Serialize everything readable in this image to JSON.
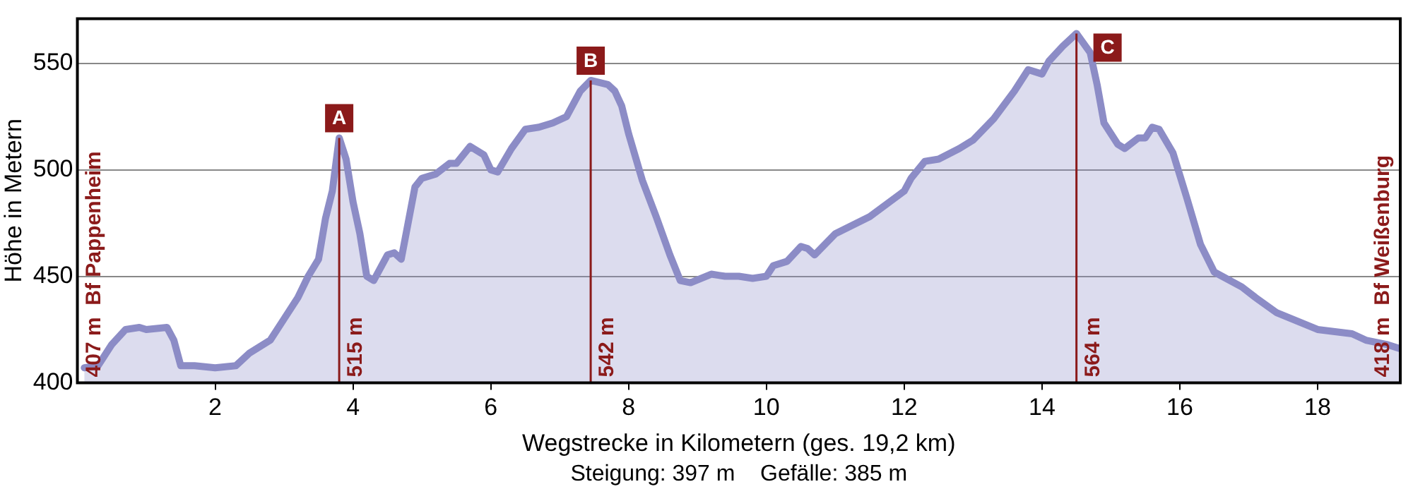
{
  "chart_data": {
    "type": "area",
    "xlabel": "Wegstrecke in Kilometern (ges. 19,2 km)",
    "ylabel": "Höhe in Metern",
    "xlim": [
      0,
      19.2
    ],
    "ylim": [
      400,
      571
    ],
    "xticks": [
      2,
      4,
      6,
      8,
      10,
      12,
      14,
      16,
      18
    ],
    "yticks": [
      400,
      450,
      500,
      550
    ],
    "grid": "y",
    "legend": false,
    "marker": "none",
    "line_style": "solid",
    "ref_lines": [
      {
        "axis": "x",
        "value": 3.8,
        "label": "515 m",
        "color": "#8b1a1a"
      },
      {
        "axis": "x",
        "value": 7.45,
        "label": "542 m",
        "color": "#8b1a1a"
      },
      {
        "axis": "x",
        "value": 14.5,
        "label": "564 m",
        "color": "#8b1a1a"
      }
    ],
    "annotations": [
      {
        "text": "A",
        "x": 3.8,
        "y": 515
      },
      {
        "text": "B",
        "x": 7.45,
        "y": 542
      },
      {
        "text": "C",
        "x": 14.5,
        "y": 564
      },
      {
        "text": "407 m  Bf Pappenheim",
        "x": 0.1,
        "y": 407
      },
      {
        "text": "418 m  Bf Weißenburg",
        "x": 19.0,
        "y": 418
      },
      "Steigung: 397 m    Gefälle: 385 m"
    ],
    "series": [
      {
        "color": "#8c8cc6",
        "x": [
          0.1,
          0.3,
          0.5,
          0.7,
          0.9,
          1.0,
          1.3,
          1.4,
          1.5,
          1.7,
          2.0,
          2.3,
          2.5,
          2.8,
          3.0,
          3.2,
          3.35,
          3.5,
          3.6,
          3.7,
          3.8,
          3.9,
          4.0,
          4.1,
          4.2,
          4.3,
          4.5,
          4.6,
          4.7,
          4.8,
          4.9,
          5.0,
          5.2,
          5.4,
          5.5,
          5.7,
          5.9,
          6.0,
          6.1,
          6.3,
          6.5,
          6.7,
          6.9,
          7.1,
          7.3,
          7.45,
          7.7,
          7.8,
          7.9,
          8.0,
          8.2,
          8.4,
          8.6,
          8.75,
          8.9,
          9.2,
          9.4,
          9.6,
          9.8,
          10.0,
          10.1,
          10.3,
          10.5,
          10.6,
          10.7,
          11.0,
          11.5,
          12.0,
          12.1,
          12.3,
          12.5,
          12.8,
          13.0,
          13.3,
          13.6,
          13.8,
          14.0,
          14.1,
          14.3,
          14.5,
          14.7,
          14.8,
          14.9,
          15.1,
          15.2,
          15.4,
          15.5,
          15.6,
          15.7,
          15.9,
          16.1,
          16.3,
          16.5,
          16.9,
          17.1,
          17.4,
          17.7,
          18.0,
          18.5,
          18.7,
          19.0,
          19.2
        ],
        "values": [
          407,
          408,
          418,
          425,
          426,
          425,
          426,
          420,
          408,
          408,
          407,
          408,
          414,
          420,
          430,
          440,
          450,
          458,
          477,
          490,
          515,
          505,
          485,
          470,
          450,
          448,
          460,
          461,
          458,
          475,
          492,
          496,
          498,
          503,
          503,
          511,
          507,
          500,
          499,
          510,
          519,
          520,
          522,
          525,
          537,
          542,
          540,
          537,
          530,
          517,
          495,
          478,
          460,
          448,
          447,
          451,
          450,
          450,
          449,
          450,
          455,
          457,
          464,
          463,
          460,
          470,
          478,
          490,
          496,
          504,
          505,
          510,
          514,
          524,
          537,
          547,
          545,
          551,
          558,
          564,
          555,
          540,
          522,
          512,
          510,
          515,
          515,
          520,
          519,
          508,
          487,
          465,
          452,
          445,
          440,
          433,
          429,
          425,
          423,
          420,
          418,
          416
        ]
      }
    ]
  }
}
